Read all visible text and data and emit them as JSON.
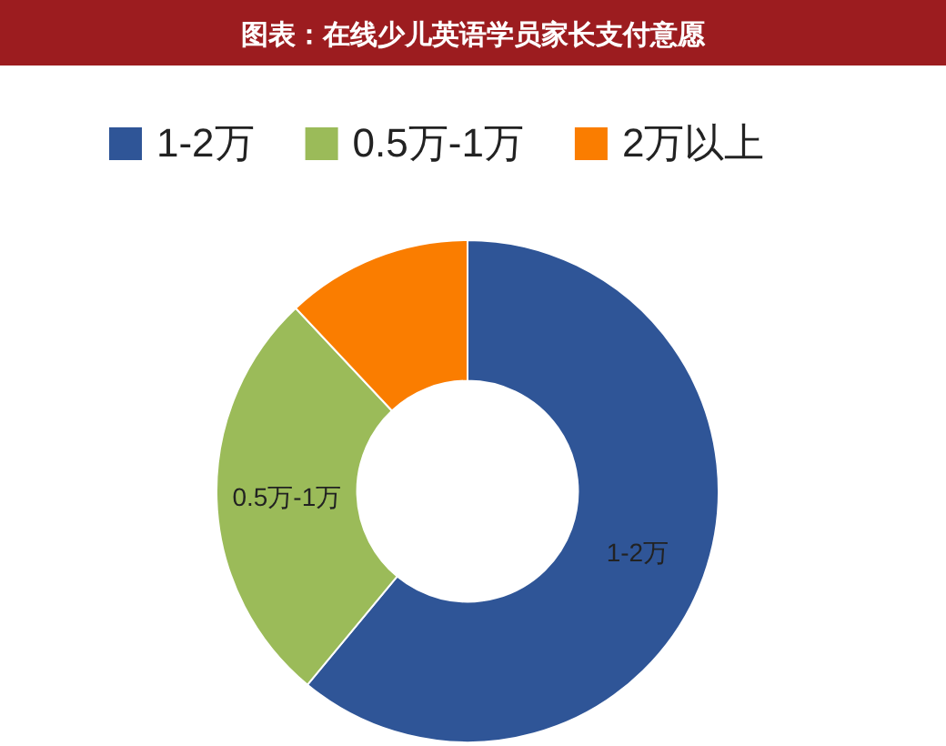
{
  "chart_data": {
    "type": "donut",
    "title": "图表：在线少儿英语学员家长支付意愿",
    "categories": [
      "1-2万",
      "0.5万-1万",
      "2万以上"
    ],
    "values": [
      61,
      27,
      12
    ],
    "colors": [
      "#2f5597",
      "#9bbb59",
      "#fa7d00"
    ],
    "annotations": [
      {
        "text": "1-2万",
        "x": "1-2万"
      },
      {
        "text": "0.5万-1万",
        "x": "0.5万-1万"
      }
    ],
    "legend": "top"
  }
}
